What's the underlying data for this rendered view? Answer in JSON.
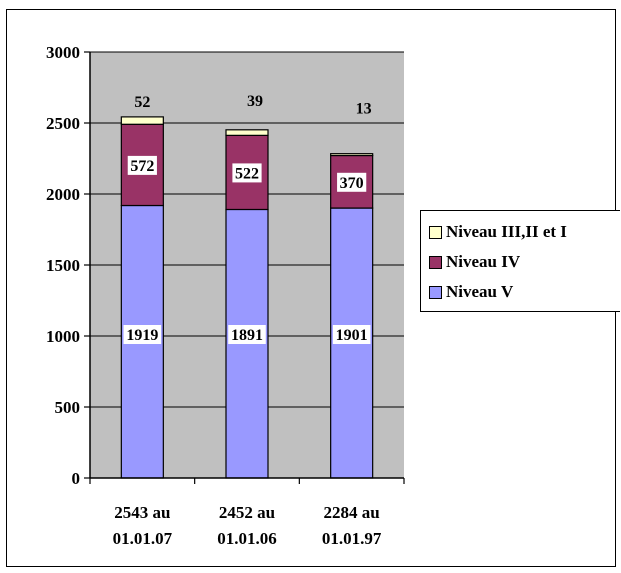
{
  "chart_data": {
    "type": "bar",
    "stacked": true,
    "categories": [
      "2543 au\n01.01.07",
      "2452 au\n01.01.06",
      "2284 au\n01.01.97"
    ],
    "series": [
      {
        "name": "Niveau V",
        "values": [
          1919,
          1891,
          1901
        ],
        "color": "#9999ff"
      },
      {
        "name": "Niveau IV",
        "values": [
          572,
          522,
          370
        ],
        "color": "#993366"
      },
      {
        "name": "Niveau III,II et I",
        "values": [
          52,
          39,
          13
        ],
        "color": "#ffffcc"
      }
    ],
    "ylim": [
      0,
      3000
    ],
    "yticks": [
      "0",
      "500",
      "1000",
      "1500",
      "2000",
      "2500",
      "3000"
    ],
    "title": "",
    "xlabel": "",
    "ylabel": "",
    "grid": true,
    "plot_background": "#c0c0c0",
    "legend_position": "right"
  },
  "legend": {
    "items": [
      {
        "label": "Niveau III,II et I",
        "color": "#ffffcc"
      },
      {
        "label": "Niveau IV",
        "color": "#993366"
      },
      {
        "label": "Niveau V",
        "color": "#9999ff"
      }
    ]
  }
}
